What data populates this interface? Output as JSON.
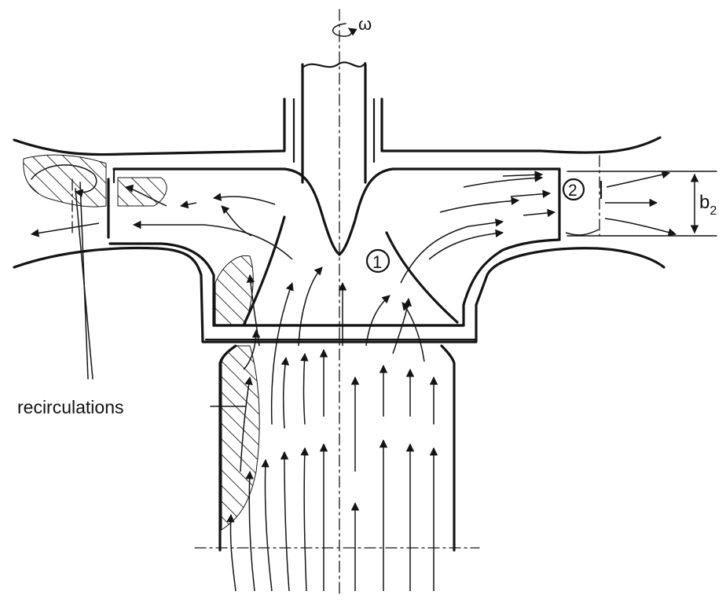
{
  "labels": {
    "omega": "ω",
    "station_1": "1",
    "station_2": "2",
    "width_symbol": "b",
    "width_subscript": "2",
    "recirculations": "recirculations"
  },
  "colors": {
    "ink": "#141414",
    "paper": "#ffffff"
  }
}
